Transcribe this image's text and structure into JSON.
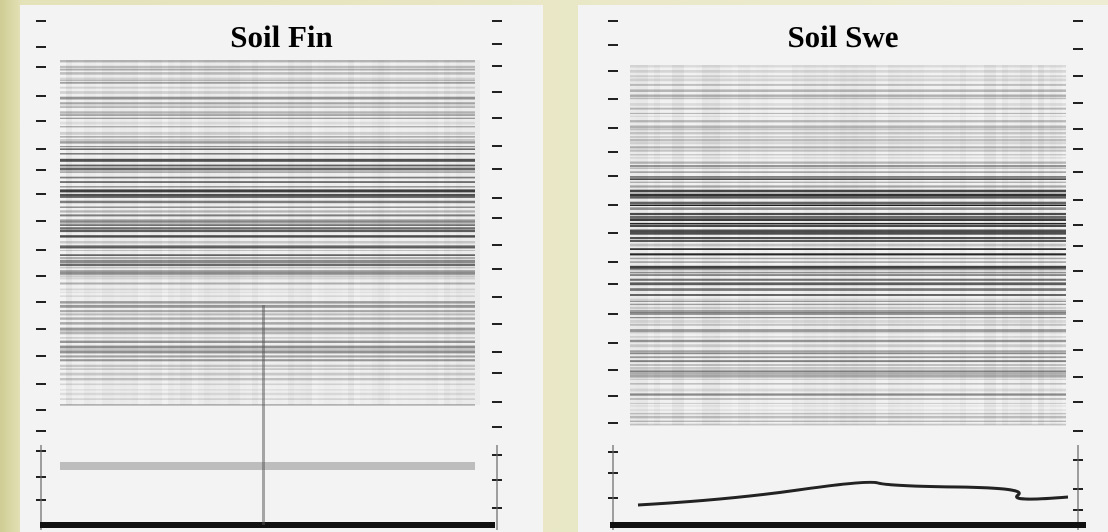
{
  "panels": [
    {
      "title": "Soil Fin"
    },
    {
      "title": "Soil Swe"
    }
  ]
}
